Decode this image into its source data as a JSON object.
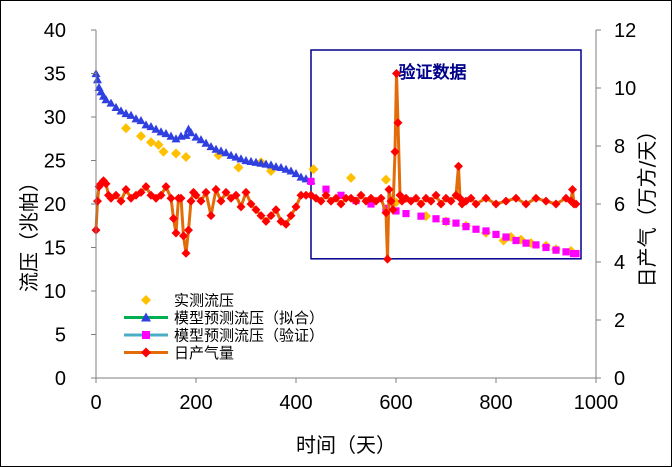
{
  "chart_data": {
    "type": "scatter",
    "title": "",
    "xlabel": "时间（天）",
    "ylabel_left": "流压（兆帕）",
    "ylabel_right": "日产气（万方/天）",
    "xlim": [
      0,
      1000
    ],
    "ylim_left": [
      0,
      40
    ],
    "ylim_right": [
      0,
      12
    ],
    "x_ticks": [
      "0",
      "200",
      "400",
      "600",
      "800",
      "1000"
    ],
    "y_ticks_left": [
      "0",
      "5",
      "10",
      "15",
      "20",
      "25",
      "30",
      "35",
      "40"
    ],
    "y_ticks_right": [
      "0",
      "2",
      "4",
      "6",
      "8",
      "10",
      "12"
    ],
    "grid": false,
    "annotation": {
      "text": "验证数据",
      "box_x": [
        430,
        970
      ],
      "box_y_left": [
        13.7,
        37.7
      ],
      "color": "#00008b"
    },
    "legend": [
      {
        "label": "实测流压",
        "color": "#ffc000",
        "marker": "diamond",
        "line": false
      },
      {
        "label": "模型预测流压（拟合）",
        "color": "#00b050",
        "marker_color": "#2f3fe0",
        "marker": "triangle",
        "line": true
      },
      {
        "label": "模型预测流压（验证）",
        "color": "#4bacc6",
        "marker_color": "#ff00ff",
        "marker": "square",
        "line": true
      },
      {
        "label": "日产气量",
        "color": "#e36c09",
        "marker_color": "#ff0000",
        "marker": "diamond",
        "line": true
      }
    ],
    "series": [
      {
        "name": "实测流压",
        "axis": "left",
        "color": "#ffc000",
        "x": [
          60,
          90,
          110,
          125,
          135,
          160,
          180,
          245,
          285,
          330,
          350,
          435,
          510,
          580,
          600,
          660,
          700,
          740,
          780,
          815,
          830,
          850,
          870,
          900,
          920,
          950
        ],
        "y": [
          28.7,
          27.8,
          27.1,
          26.8,
          26.0,
          25.8,
          25.4,
          25.6,
          24.2,
          24.8,
          23.8,
          24.0,
          23.0,
          22.8,
          20.2,
          18.6,
          18.0,
          17.5,
          16.7,
          15.8,
          16.2,
          15.9,
          15.5,
          15.2,
          14.8,
          14.6
        ]
      },
      {
        "name": "模型预测流压（拟合）",
        "axis": "left",
        "color": "#2f3fe0",
        "x": [
          0,
          3,
          6,
          10,
          15,
          20,
          30,
          40,
          50,
          60,
          70,
          80,
          90,
          100,
          110,
          120,
          130,
          140,
          150,
          160,
          170,
          180,
          185,
          190,
          200,
          210,
          220,
          230,
          240,
          250,
          260,
          270,
          280,
          290,
          300,
          310,
          320,
          330,
          340,
          350,
          360,
          370,
          380,
          390,
          400,
          410,
          420,
          430
        ],
        "y": [
          35.0,
          34.3,
          33.4,
          32.9,
          32.4,
          32.0,
          31.6,
          31.1,
          30.7,
          30.4,
          30.2,
          29.8,
          29.6,
          29.1,
          28.9,
          28.6,
          28.3,
          28.1,
          27.8,
          27.5,
          27.8,
          27.9,
          28.6,
          28.2,
          27.7,
          27.4,
          27.0,
          26.6,
          26.3,
          26.1,
          25.9,
          25.6,
          25.4,
          25.2,
          25.0,
          24.9,
          24.8,
          24.7,
          24.6,
          24.5,
          24.3,
          24.2,
          24.0,
          23.8,
          23.5,
          23.1,
          22.9,
          22.7
        ]
      },
      {
        "name": "模型预测流压（验证）",
        "axis": "left",
        "color": "#ff00ff",
        "x": [
          430,
          460,
          490,
          520,
          550,
          580,
          600,
          620,
          650,
          680,
          700,
          720,
          740,
          760,
          780,
          800,
          820,
          840,
          860,
          880,
          900,
          920,
          940,
          955,
          960
        ],
        "y": [
          22.6,
          21.7,
          21.0,
          20.4,
          20.0,
          19.5,
          19.2,
          18.9,
          18.6,
          18.3,
          18.0,
          17.8,
          17.4,
          17.1,
          16.9,
          16.5,
          16.2,
          15.8,
          15.5,
          15.3,
          15.0,
          14.7,
          14.5,
          14.3,
          14.3
        ]
      },
      {
        "name": "日产气量",
        "axis": "right",
        "color": "#ff0000",
        "line_color": "#e36c09",
        "x": [
          0,
          3,
          6,
          10,
          15,
          20,
          25,
          30,
          40,
          50,
          60,
          70,
          80,
          90,
          100,
          110,
          120,
          130,
          140,
          150,
          155,
          160,
          165,
          170,
          175,
          180,
          185,
          190,
          195,
          200,
          210,
          220,
          230,
          240,
          250,
          260,
          270,
          280,
          290,
          300,
          310,
          320,
          330,
          340,
          350,
          360,
          370,
          380,
          390,
          400,
          410,
          420,
          430,
          440,
          450,
          460,
          470,
          480,
          490,
          500,
          510,
          520,
          530,
          540,
          550,
          560,
          570,
          580,
          583,
          586,
          590,
          594,
          598,
          601,
          604,
          608,
          612,
          620,
          630,
          640,
          650,
          660,
          670,
          680,
          690,
          700,
          710,
          720,
          725,
          728,
          732,
          740,
          750,
          760,
          780,
          800,
          820,
          840,
          860,
          880,
          900,
          920,
          940,
          950,
          953,
          956,
          960
        ],
        "y": [
          5.1,
          6.1,
          6.6,
          6.7,
          6.8,
          6.7,
          6.3,
          6.2,
          6.3,
          6.1,
          6.5,
          6.2,
          6.3,
          6.4,
          6.6,
          6.3,
          6.2,
          6.3,
          6.6,
          6.2,
          5.5,
          5.0,
          6.2,
          6.2,
          4.9,
          4.3,
          5.1,
          6.1,
          6.4,
          6.3,
          6.1,
          6.4,
          5.6,
          6.5,
          6.1,
          6.4,
          6.2,
          6.3,
          5.9,
          6.4,
          6.0,
          5.8,
          5.6,
          5.4,
          5.6,
          5.8,
          5.4,
          5.3,
          5.6,
          5.9,
          6.3,
          6.3,
          6.3,
          6.2,
          6.1,
          6.3,
          6.1,
          6.2,
          6.0,
          6.2,
          6.2,
          6.1,
          6.3,
          6.1,
          6.2,
          6.1,
          6.2,
          5.7,
          4.1,
          6.5,
          6.1,
          5.8,
          7.8,
          10.5,
          8.8,
          6.3,
          6.1,
          6.2,
          6.1,
          6.2,
          6.0,
          6.2,
          6.1,
          6.3,
          6.0,
          6.2,
          6.1,
          6.3,
          7.3,
          6.2,
          6.0,
          6.1,
          6.2,
          6.0,
          6.2,
          6.0,
          6.1,
          6.2,
          6.0,
          6.2,
          6.1,
          6.0,
          6.2,
          6.1,
          6.5,
          6.0,
          6.0
        ]
      }
    ]
  }
}
